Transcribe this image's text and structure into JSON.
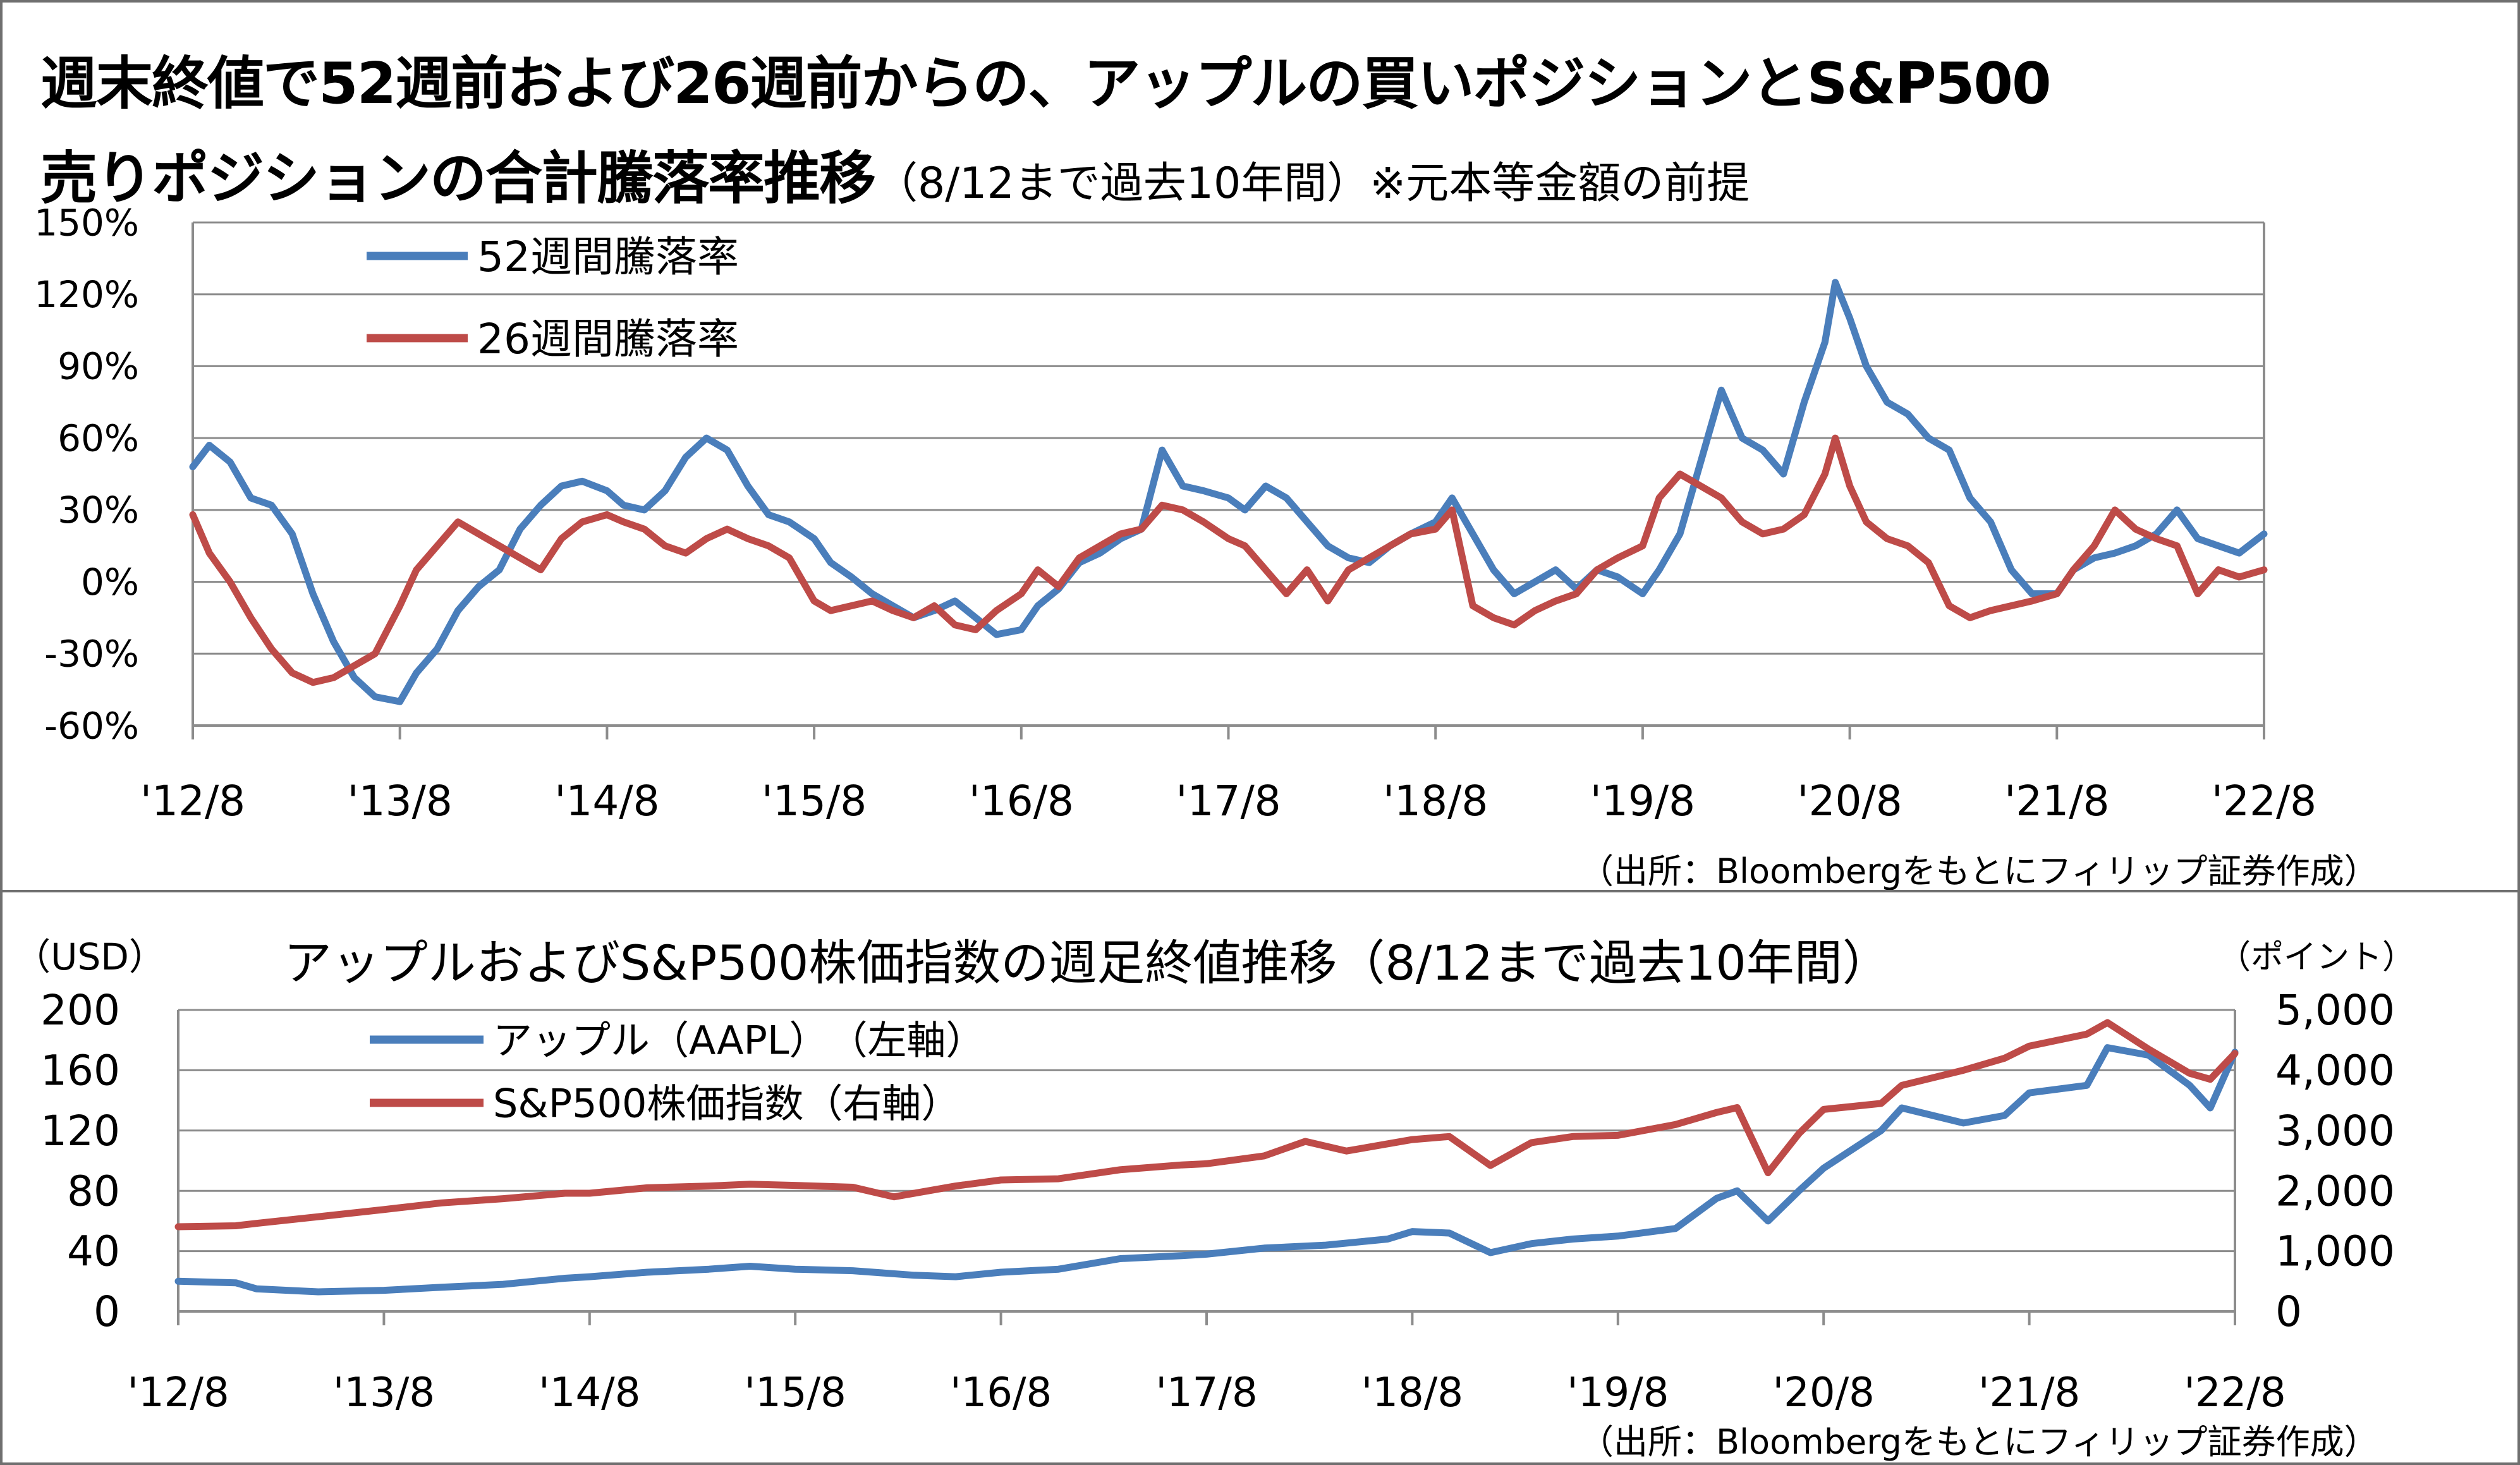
{
  "top_chart": {
    "title_line1": "週末終値で52週前および26週前からの、アップルの買いポジションとS&P500",
    "title_line2_main": "売りポジションの合計騰落率推移",
    "title_line2_sub": "（8/12まで過去10年間）※元本等金額の前提",
    "source": "（出所：Bloombergをもとにフィリップ証券作成）"
  },
  "bottom_chart": {
    "title": "アップルおよびS&P500株価指数の週足終値推移（8/12まで過去10年間）",
    "left_unit": "（USD）",
    "right_unit": "（ポイント）",
    "source": "（出所：Bloombergをもとにフィリップ証券作成）"
  },
  "chart_data": [
    {
      "type": "line",
      "ylim": [
        -60,
        150
      ],
      "y_ticks": [
        "150%",
        "120%",
        "90%",
        "60%",
        "30%",
        "0%",
        "-30%",
        "-60%"
      ],
      "x_ticks": [
        "'12/8",
        "'13/8",
        "'14/8",
        "'15/8",
        "'16/8",
        "'17/8",
        "'18/8",
        "'19/8",
        "'20/8",
        "'21/8",
        "'22/8"
      ],
      "x_range": [
        2012.62,
        2022.62
      ],
      "grid": true,
      "legend_position": "top-left",
      "series": [
        {
          "name": "52週間騰落率",
          "color": "#4a7ebb",
          "x": [
            2012.62,
            2012.7,
            2012.8,
            2012.9,
            2013.0,
            2013.1,
            2013.2,
            2013.3,
            2013.4,
            2013.5,
            2013.62,
            2013.7,
            2013.8,
            2013.9,
            2014.0,
            2014.1,
            2014.2,
            2014.3,
            2014.4,
            2014.5,
            2014.62,
            2014.7,
            2014.8,
            2014.9,
            2015.0,
            2015.1,
            2015.2,
            2015.3,
            2015.4,
            2015.5,
            2015.62,
            2015.7,
            2015.8,
            2015.9,
            2016.0,
            2016.1,
            2016.2,
            2016.3,
            2016.4,
            2016.5,
            2016.62,
            2016.7,
            2016.8,
            2016.9,
            2017.0,
            2017.1,
            2017.2,
            2017.3,
            2017.4,
            2017.5,
            2017.62,
            2017.7,
            2017.8,
            2017.9,
            2018.0,
            2018.1,
            2018.2,
            2018.3,
            2018.4,
            2018.5,
            2018.62,
            2018.7,
            2018.8,
            2018.9,
            2019.0,
            2019.1,
            2019.2,
            2019.3,
            2019.4,
            2019.5,
            2019.62,
            2019.7,
            2019.8,
            2019.9,
            2020.0,
            2020.1,
            2020.2,
            2020.3,
            2020.4,
            2020.5,
            2020.55,
            2020.62,
            2020.7,
            2020.8,
            2020.9,
            2021.0,
            2021.1,
            2021.2,
            2021.3,
            2021.4,
            2021.5,
            2021.62,
            2021.7,
            2021.8,
            2021.9,
            2022.0,
            2022.1,
            2022.2,
            2022.3,
            2022.4,
            2022.5,
            2022.62
          ],
          "values": [
            48,
            57,
            50,
            35,
            32,
            20,
            -5,
            -25,
            -40,
            -48,
            -50,
            -38,
            -28,
            -12,
            -2,
            5,
            22,
            32,
            40,
            42,
            38,
            32,
            30,
            38,
            52,
            60,
            55,
            40,
            28,
            25,
            18,
            8,
            2,
            -5,
            -10,
            -15,
            -12,
            -8,
            -15,
            -22,
            -20,
            -10,
            -3,
            8,
            12,
            18,
            22,
            55,
            40,
            38,
            35,
            30,
            40,
            35,
            25,
            15,
            10,
            8,
            15,
            20,
            25,
            35,
            20,
            5,
            -5,
            0,
            5,
            -3,
            5,
            2,
            -5,
            5,
            20,
            50,
            80,
            60,
            55,
            45,
            75,
            100,
            125,
            110,
            90,
            75,
            70,
            60,
            55,
            35,
            25,
            5,
            -5,
            -5,
            5,
            10,
            12,
            15,
            20,
            30,
            18,
            15,
            12,
            20
          ],
          "note": "approximate weekly-sampled readings"
        },
        {
          "name": "26週間騰落率",
          "color": "#be4b48",
          "x": [
            2012.62,
            2012.7,
            2012.8,
            2012.9,
            2013.0,
            2013.1,
            2013.2,
            2013.3,
            2013.4,
            2013.5,
            2013.62,
            2013.7,
            2013.8,
            2013.9,
            2014.0,
            2014.1,
            2014.2,
            2014.3,
            2014.4,
            2014.5,
            2014.62,
            2014.7,
            2014.8,
            2014.9,
            2015.0,
            2015.1,
            2015.2,
            2015.3,
            2015.4,
            2015.5,
            2015.62,
            2015.7,
            2015.8,
            2015.9,
            2016.0,
            2016.1,
            2016.2,
            2016.3,
            2016.4,
            2016.5,
            2016.62,
            2016.7,
            2016.8,
            2016.9,
            2017.0,
            2017.1,
            2017.2,
            2017.3,
            2017.4,
            2017.5,
            2017.62,
            2017.7,
            2017.8,
            2017.9,
            2018.0,
            2018.1,
            2018.2,
            2018.3,
            2018.4,
            2018.5,
            2018.62,
            2018.7,
            2018.8,
            2018.9,
            2019.0,
            2019.1,
            2019.2,
            2019.3,
            2019.4,
            2019.5,
            2019.62,
            2019.7,
            2019.8,
            2019.9,
            2020.0,
            2020.1,
            2020.2,
            2020.3,
            2020.4,
            2020.5,
            2020.55,
            2020.62,
            2020.7,
            2020.8,
            2020.9,
            2021.0,
            2021.1,
            2021.2,
            2021.3,
            2021.4,
            2021.5,
            2021.62,
            2021.7,
            2021.8,
            2021.9,
            2022.0,
            2022.1,
            2022.2,
            2022.3,
            2022.4,
            2022.5,
            2022.62
          ],
          "values": [
            28,
            12,
            0,
            -15,
            -28,
            -38,
            -42,
            -40,
            -35,
            -30,
            -10,
            5,
            15,
            25,
            20,
            15,
            10,
            5,
            18,
            25,
            28,
            25,
            22,
            15,
            12,
            18,
            22,
            18,
            15,
            10,
            -8,
            -12,
            -10,
            -8,
            -12,
            -15,
            -10,
            -18,
            -20,
            -12,
            -5,
            5,
            -2,
            10,
            15,
            20,
            22,
            32,
            30,
            25,
            18,
            15,
            5,
            -5,
            5,
            -8,
            5,
            10,
            15,
            20,
            22,
            30,
            -10,
            -15,
            -18,
            -12,
            -8,
            -5,
            5,
            10,
            15,
            35,
            45,
            40,
            35,
            25,
            20,
            22,
            28,
            45,
            60,
            40,
            25,
            18,
            15,
            8,
            -10,
            -15,
            -12,
            -10,
            -8,
            -5,
            5,
            15,
            30,
            22,
            18,
            15,
            -5,
            5,
            2,
            5
          ],
          "note": "approximate weekly-sampled readings"
        }
      ]
    },
    {
      "type": "line",
      "ylim": [
        0,
        200
      ],
      "y_ticks": [
        "200",
        "160",
        "120",
        "80",
        "40",
        "0"
      ],
      "y2lim": [
        0,
        5000
      ],
      "y2_ticks": [
        "5,000",
        "4,000",
        "3,000",
        "2,000",
        "1,000",
        "0"
      ],
      "x_ticks": [
        "'12/8",
        "'13/8",
        "'14/8",
        "'15/8",
        "'16/8",
        "'17/8",
        "'18/8",
        "'19/8",
        "'20/8",
        "'21/8",
        "'22/8"
      ],
      "x_range": [
        2012.62,
        2022.62
      ],
      "grid": true,
      "legend_position": "top-left",
      "series": [
        {
          "name": "アップル（AAPL）　（左軸）",
          "color": "#4a7ebb",
          "axis": "left",
          "x": [
            2012.62,
            2012.9,
            2013.0,
            2013.3,
            2013.62,
            2013.9,
            2014.2,
            2014.5,
            2014.62,
            2014.9,
            2015.2,
            2015.4,
            2015.62,
            2015.9,
            2016.2,
            2016.4,
            2016.62,
            2016.9,
            2017.2,
            2017.5,
            2017.62,
            2017.9,
            2018.2,
            2018.5,
            2018.62,
            2018.8,
            2019.0,
            2019.2,
            2019.4,
            2019.62,
            2019.9,
            2020.1,
            2020.2,
            2020.35,
            2020.5,
            2020.62,
            2020.9,
            2021.0,
            2021.3,
            2021.5,
            2021.62,
            2021.9,
            2022.0,
            2022.2,
            2022.4,
            2022.5,
            2022.62
          ],
          "values": [
            20,
            19,
            15,
            13,
            14,
            16,
            18,
            22,
            23,
            26,
            28,
            30,
            28,
            27,
            24,
            23,
            26,
            28,
            35,
            37,
            38,
            42,
            44,
            48,
            53,
            52,
            39,
            45,
            48,
            50,
            55,
            75,
            80,
            60,
            80,
            95,
            120,
            135,
            125,
            130,
            145,
            150,
            175,
            170,
            150,
            135,
            172
          ]
        },
        {
          "name": "S&P500株価指数（右軸）",
          "color": "#be4b48",
          "axis": "right",
          "x": [
            2012.62,
            2012.9,
            2013.0,
            2013.3,
            2013.62,
            2013.9,
            2014.2,
            2014.5,
            2014.62,
            2014.9,
            2015.2,
            2015.4,
            2015.62,
            2015.9,
            2016.1,
            2016.4,
            2016.62,
            2016.9,
            2017.2,
            2017.5,
            2017.62,
            2017.9,
            2018.1,
            2018.3,
            2018.62,
            2018.8,
            2019.0,
            2019.2,
            2019.4,
            2019.62,
            2019.9,
            2020.1,
            2020.2,
            2020.35,
            2020.5,
            2020.62,
            2020.9,
            2021.0,
            2021.3,
            2021.5,
            2021.62,
            2021.9,
            2022.0,
            2022.2,
            2022.4,
            2022.5,
            2022.62
          ],
          "values": [
            1405,
            1420,
            1460,
            1570,
            1690,
            1800,
            1870,
            1960,
            1960,
            2050,
            2080,
            2110,
            2090,
            2060,
            1900,
            2080,
            2180,
            2200,
            2350,
            2430,
            2450,
            2580,
            2820,
            2660,
            2850,
            2900,
            2420,
            2800,
            2900,
            2920,
            3100,
            3300,
            3380,
            2300,
            2950,
            3350,
            3450,
            3750,
            4000,
            4200,
            4400,
            4600,
            4790,
            4350,
            3950,
            3850,
            4280
          ]
        }
      ]
    }
  ]
}
